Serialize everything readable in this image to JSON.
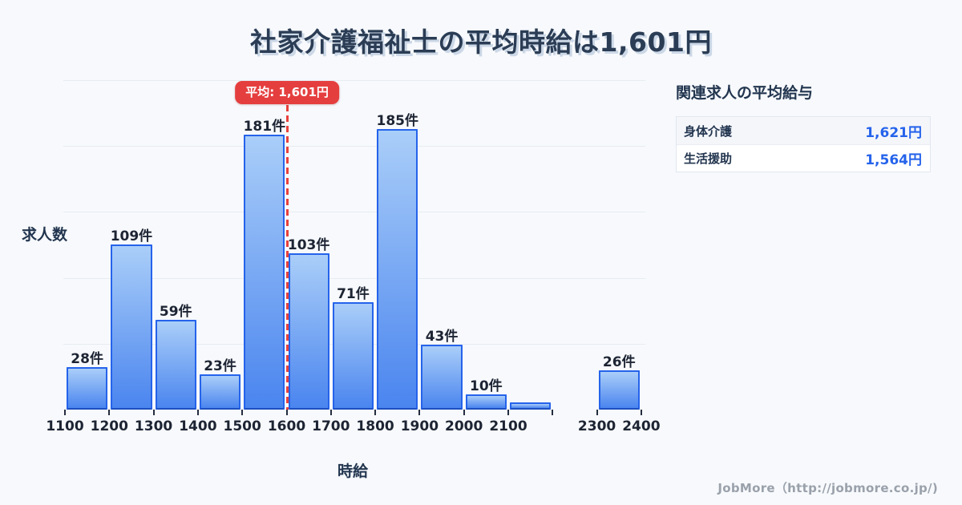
{
  "title": "社家介護福祉士の平均時給は1,601円",
  "chart_data": {
    "type": "bar",
    "title": "社家介護福祉士の平均時給は1,601円",
    "xlabel": "時給",
    "ylabel": "求人数",
    "bin_edges": [
      1100,
      1200,
      1300,
      1400,
      1500,
      1600,
      1700,
      1800,
      1900,
      2000,
      2100,
      2200,
      2300,
      2400
    ],
    "values": [
      28,
      109,
      59,
      23,
      181,
      103,
      71,
      185,
      43,
      10,
      5,
      0,
      26
    ],
    "bar_labels": [
      "28件",
      "109件",
      "59件",
      "23件",
      "181件",
      "103件",
      "71件",
      "185件",
      "43件",
      "10件",
      "",
      "",
      "26件"
    ],
    "x_tick_labels": [
      "1100",
      "1200",
      "1300",
      "1400",
      "1500",
      "1600",
      "1700",
      "1800",
      "1900",
      "2000",
      "2100",
      "",
      "2300",
      "2400"
    ],
    "ylim": [
      0,
      217
    ],
    "grid": "horizontal",
    "legend": "none",
    "average": {
      "value": 1601,
      "label": "平均: 1,601円"
    }
  },
  "panel": {
    "heading": "関連求人の平均給与",
    "rows": [
      {
        "label": "身体介護",
        "value": "1,621円"
      },
      {
        "label": "生活援助",
        "value": "1,564円"
      }
    ]
  },
  "footer": {
    "credit": "JobMore（http://jobmore.co.jp/)"
  },
  "colors": {
    "background": "#f7f9fc",
    "title_navy": "#2b3d55",
    "bar_border": "#2563eb",
    "bar_gradient_top": "#aacef9",
    "bar_gradient_bottom": "#4a85ef",
    "average_red": "#e53e3e",
    "value_blue": "#2563eb",
    "gridline": "#e7ecf2",
    "footer_gray": "#9aa1ab"
  }
}
